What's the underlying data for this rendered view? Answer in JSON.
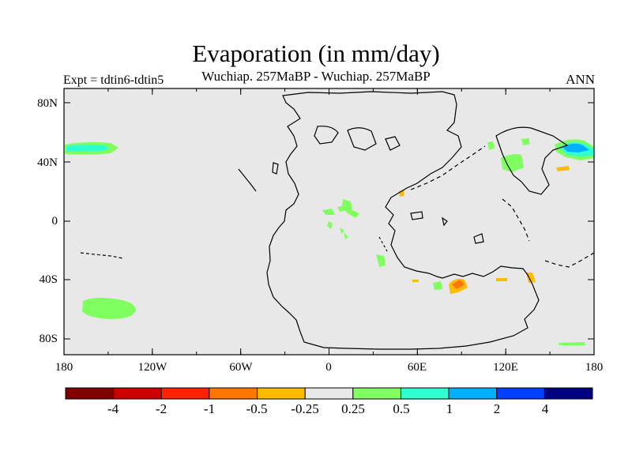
{
  "map": {
    "title": "Evaporation (in mm/day)",
    "subtitle": "Wuchiap. 257MaBP - Wuchiap. 257MaBP",
    "left_label": "Expt = tdtin6-tdtin5",
    "right_label": "ANN",
    "lat_labels": [
      "80N",
      "40N",
      "0",
      "40S",
      "80S"
    ],
    "lon_labels": [
      "180",
      "120W",
      "60W",
      "0",
      "60E",
      "120E",
      "180"
    ],
    "background_color": "#e8e8e8"
  },
  "colorbar": {
    "colors": [
      "#800000",
      "#cc0000",
      "#ff2200",
      "#ff7700",
      "#ffbb00",
      "#e8e8e8",
      "#80ff60",
      "#30ffd0",
      "#00b0ff",
      "#0040ff",
      "#000080"
    ],
    "labels": [
      "-4",
      "-2",
      "-1",
      "-0.5",
      "-0.25",
      "0.25",
      "0.5",
      "1",
      "2",
      "4"
    ]
  }
}
